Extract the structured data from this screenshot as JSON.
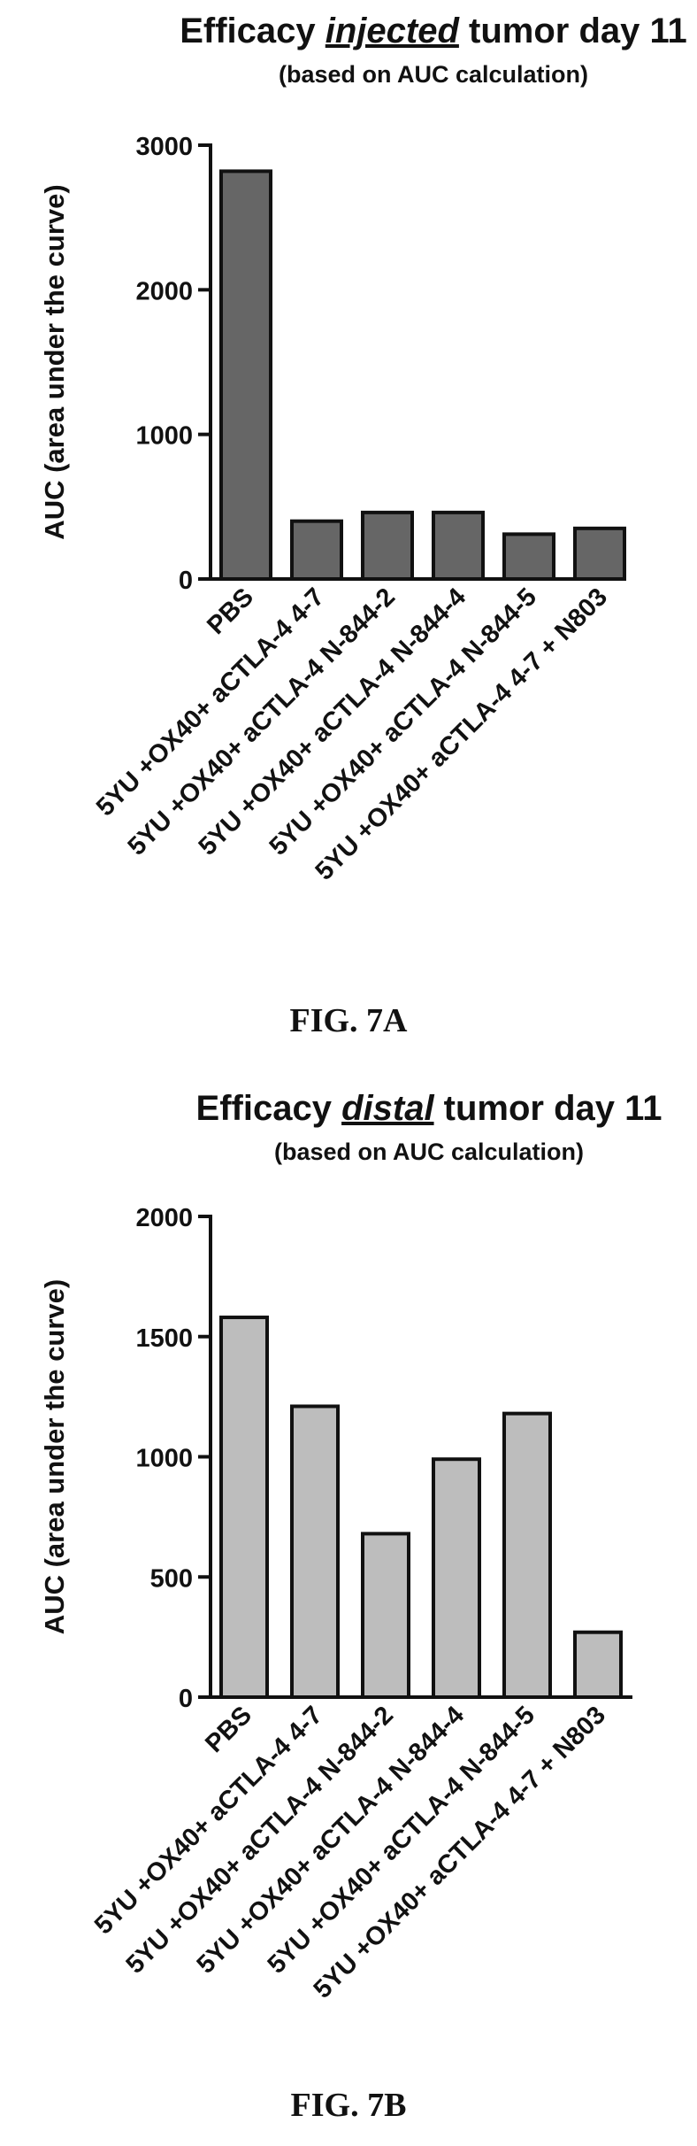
{
  "chart_data": [
    {
      "type": "bar",
      "title_parts": [
        {
          "text": "Efficacy ",
          "style": "normal"
        },
        {
          "text": "injected",
          "style": "italic-underline"
        },
        {
          "text": " tumor day 11",
          "style": "normal"
        }
      ],
      "subtitle": "(based on  AUC calculation)",
      "ylabel": "AUC (area under the curve)",
      "ylim": [
        0,
        3000
      ],
      "yticks": [
        0,
        1000,
        2000,
        3000
      ],
      "bar_color": "#666666",
      "categories": [
        "PBS",
        "5YU +OX40+ aCTLA-4 4-7",
        "5YU +OX40+ aCTLA-4 N-844-2",
        "5YU +OX40+ aCTLA-4 N-844-4",
        "5YU +OX40+ aCTLA-4 N-844-5",
        "5YU +OX40+ aCTLA-4 4-7 + N803"
      ],
      "values": [
        2820,
        400,
        460,
        460,
        310,
        350
      ],
      "caption": "FIG. 7A"
    },
    {
      "type": "bar",
      "title_parts": [
        {
          "text": "Efficacy ",
          "style": "normal"
        },
        {
          "text": "distal",
          "style": "italic-underline"
        },
        {
          "text": " tumor day 11",
          "style": "normal"
        }
      ],
      "subtitle": "(based on AUC calculation)",
      "ylabel": "AUC (area under the curve)",
      "ylim": [
        0,
        2000
      ],
      "yticks": [
        0,
        500,
        1000,
        1500,
        2000
      ],
      "bar_color": "#bdbdbd",
      "categories": [
        "PBS",
        "5YU +OX40+ aCTLA-4 4-7",
        "5YU +OX40+ aCTLA-4 N-844-2",
        "5YU +OX40+ aCTLA-4 N-844-4",
        "5YU +OX40+ aCTLA-4 N-844-5",
        "5YU +OX40+ aCTLA-4 4-7 + N803"
      ],
      "values": [
        1580,
        1210,
        680,
        990,
        1180,
        270
      ],
      "caption": "FIG. 7B"
    }
  ]
}
